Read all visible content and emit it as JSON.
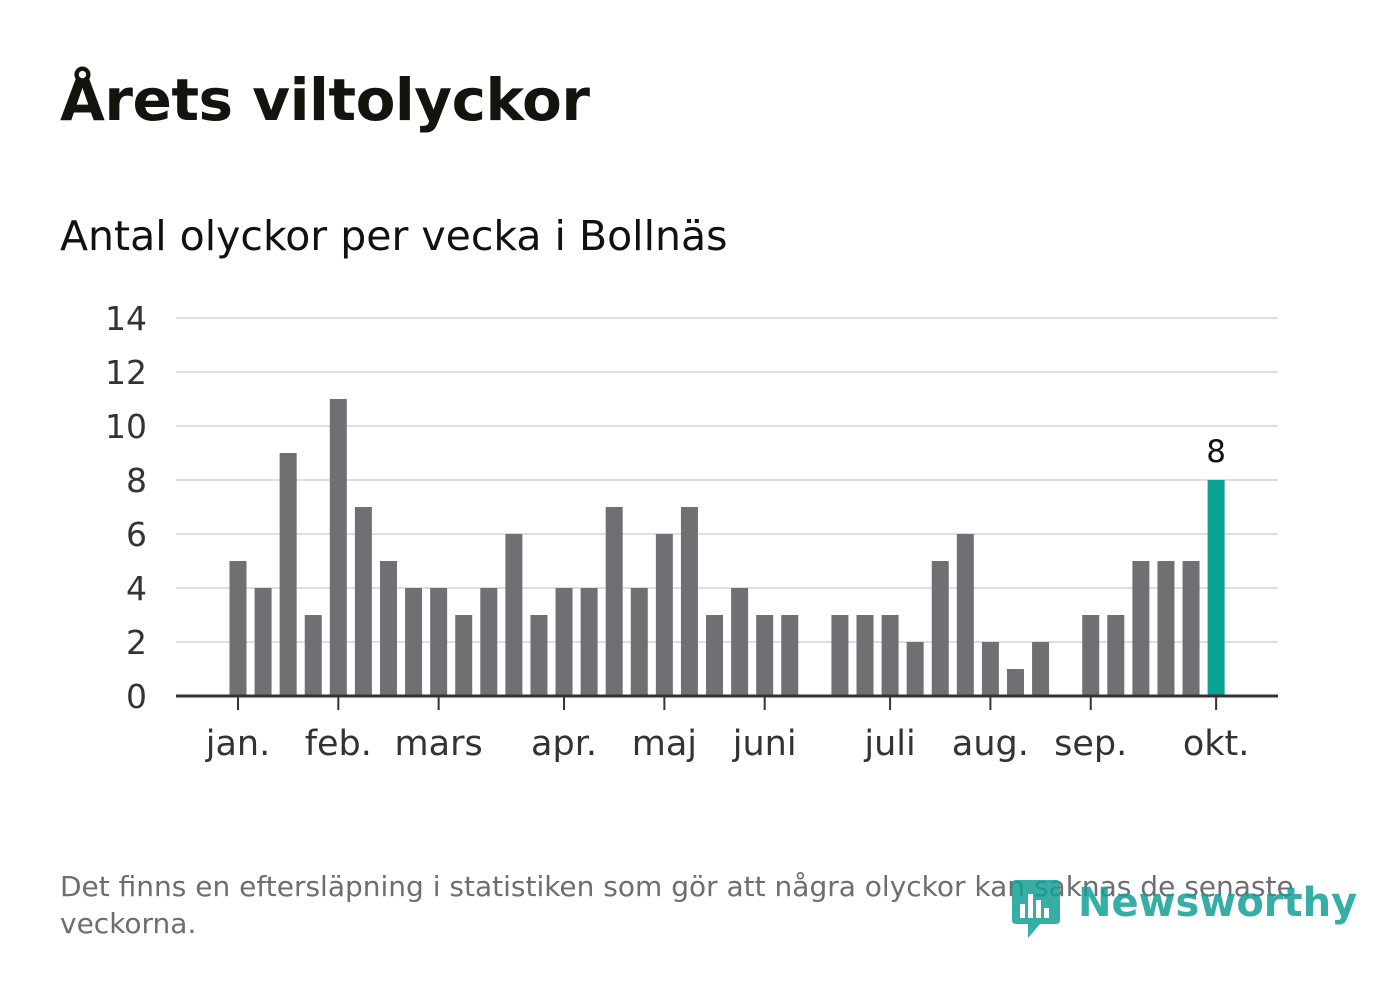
{
  "title": "Årets viltolyckor",
  "subtitle": "Antal olyckor per vecka i Bollnäs",
  "footnote": "Det finns en eftersläpning i statistiken som gör att några olyckor kan saknas de senaste veckorna.",
  "logo": {
    "text": "Newsworthy",
    "icon": "newsworthy-logo-icon"
  },
  "colors": {
    "bar": "#706f74",
    "highlight": "#0aa195",
    "grid": "#dedede",
    "axis": "#333333",
    "tick_text": "#333333",
    "logo": "#13a096"
  },
  "chart_data": {
    "type": "bar",
    "title": "Antal olyckor per vecka i Bollnäs",
    "xlabel": "",
    "ylabel": "",
    "ylim": [
      0,
      14
    ],
    "yticks": [
      0,
      2,
      4,
      6,
      8,
      10,
      12,
      14
    ],
    "grid": true,
    "weeks": [
      1,
      2,
      3,
      4,
      5,
      6,
      7,
      8,
      9,
      10,
      11,
      12,
      13,
      14,
      15,
      16,
      17,
      18,
      19,
      20,
      21,
      22,
      23,
      24,
      25,
      26,
      27,
      28,
      29,
      30,
      31,
      32,
      33,
      34,
      35,
      36,
      37,
      38,
      39,
      40
    ],
    "values": [
      5,
      4,
      9,
      3,
      11,
      7,
      5,
      4,
      4,
      3,
      4,
      6,
      3,
      4,
      4,
      7,
      4,
      6,
      7,
      3,
      4,
      3,
      3,
      0,
      3,
      3,
      3,
      2,
      5,
      6,
      2,
      1,
      2,
      0,
      3,
      3,
      5,
      5,
      5,
      8
    ],
    "highlight_index": 39,
    "highlight_label": "8",
    "month_ticks": [
      {
        "label": "jan.",
        "position": 0
      },
      {
        "label": "feb.",
        "position": 4
      },
      {
        "label": "mars",
        "position": 8
      },
      {
        "label": "apr.",
        "position": 13
      },
      {
        "label": "maj",
        "position": 17
      },
      {
        "label": "juni",
        "position": 21
      },
      {
        "label": "juli",
        "position": 26
      },
      {
        "label": "aug.",
        "position": 30
      },
      {
        "label": "sep.",
        "position": 34
      },
      {
        "label": "okt.",
        "position": 39
      }
    ]
  }
}
